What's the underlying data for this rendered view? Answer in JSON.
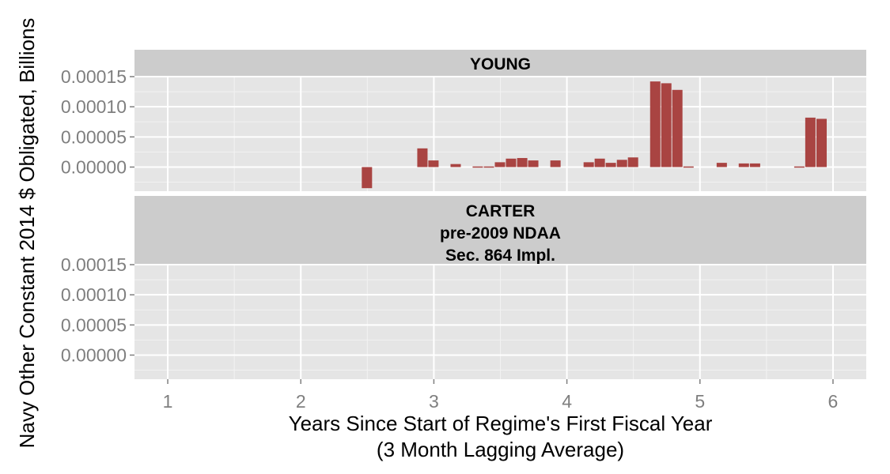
{
  "chart_data": {
    "type": "bar",
    "title": "",
    "ylabel": "Navy Other Constant 2014 $ Obligated, Billions",
    "xlabel_lines": [
      "Years Since Start of Regime's First Fiscal Year",
      "(3 Month Lagging Average)"
    ],
    "xlim": [
      0.75,
      6.25
    ],
    "x_ticks": [
      1,
      2,
      3,
      4,
      5,
      6
    ],
    "x_tick_labels": [
      "1",
      "2",
      "3",
      "4",
      "5",
      "6"
    ],
    "ylim": [
      -4e-05,
      0.00015
    ],
    "y_ticks": [
      0.0,
      5e-05,
      0.0001,
      0.00015
    ],
    "y_tick_labels": [
      "0.00000",
      "0.00005",
      "0.00010",
      "0.00015"
    ],
    "grid": true,
    "bar_color": "#a94442",
    "bar_width": 0.0833,
    "panels": [
      {
        "strip": [
          "YOUNG"
        ],
        "x": [
          2.5,
          2.917,
          3.0,
          3.167,
          3.333,
          3.417,
          3.5,
          3.583,
          3.667,
          3.75,
          3.917,
          4.167,
          4.25,
          4.333,
          4.417,
          4.5,
          4.667,
          4.75,
          4.833,
          4.917,
          5.167,
          5.333,
          5.417,
          5.75,
          5.833,
          5.917
        ],
        "values": [
          -3.5e-05,
          3.1e-05,
          1.1e-05,
          5e-06,
          1e-06,
          1e-06,
          8e-06,
          1.4e-05,
          1.5e-05,
          1.1e-05,
          1.1e-05,
          8e-06,
          1.4e-05,
          7e-06,
          1.2e-05,
          1.6e-05,
          0.000142,
          0.000139,
          0.000128,
          1e-06,
          7e-06,
          6e-06,
          6e-06,
          1e-06,
          8.2e-05,
          8e-05
        ]
      },
      {
        "strip": [
          "CARTER",
          "pre-2009 NDAA",
          "Sec. 864 Impl."
        ],
        "x": [],
        "values": []
      }
    ]
  }
}
